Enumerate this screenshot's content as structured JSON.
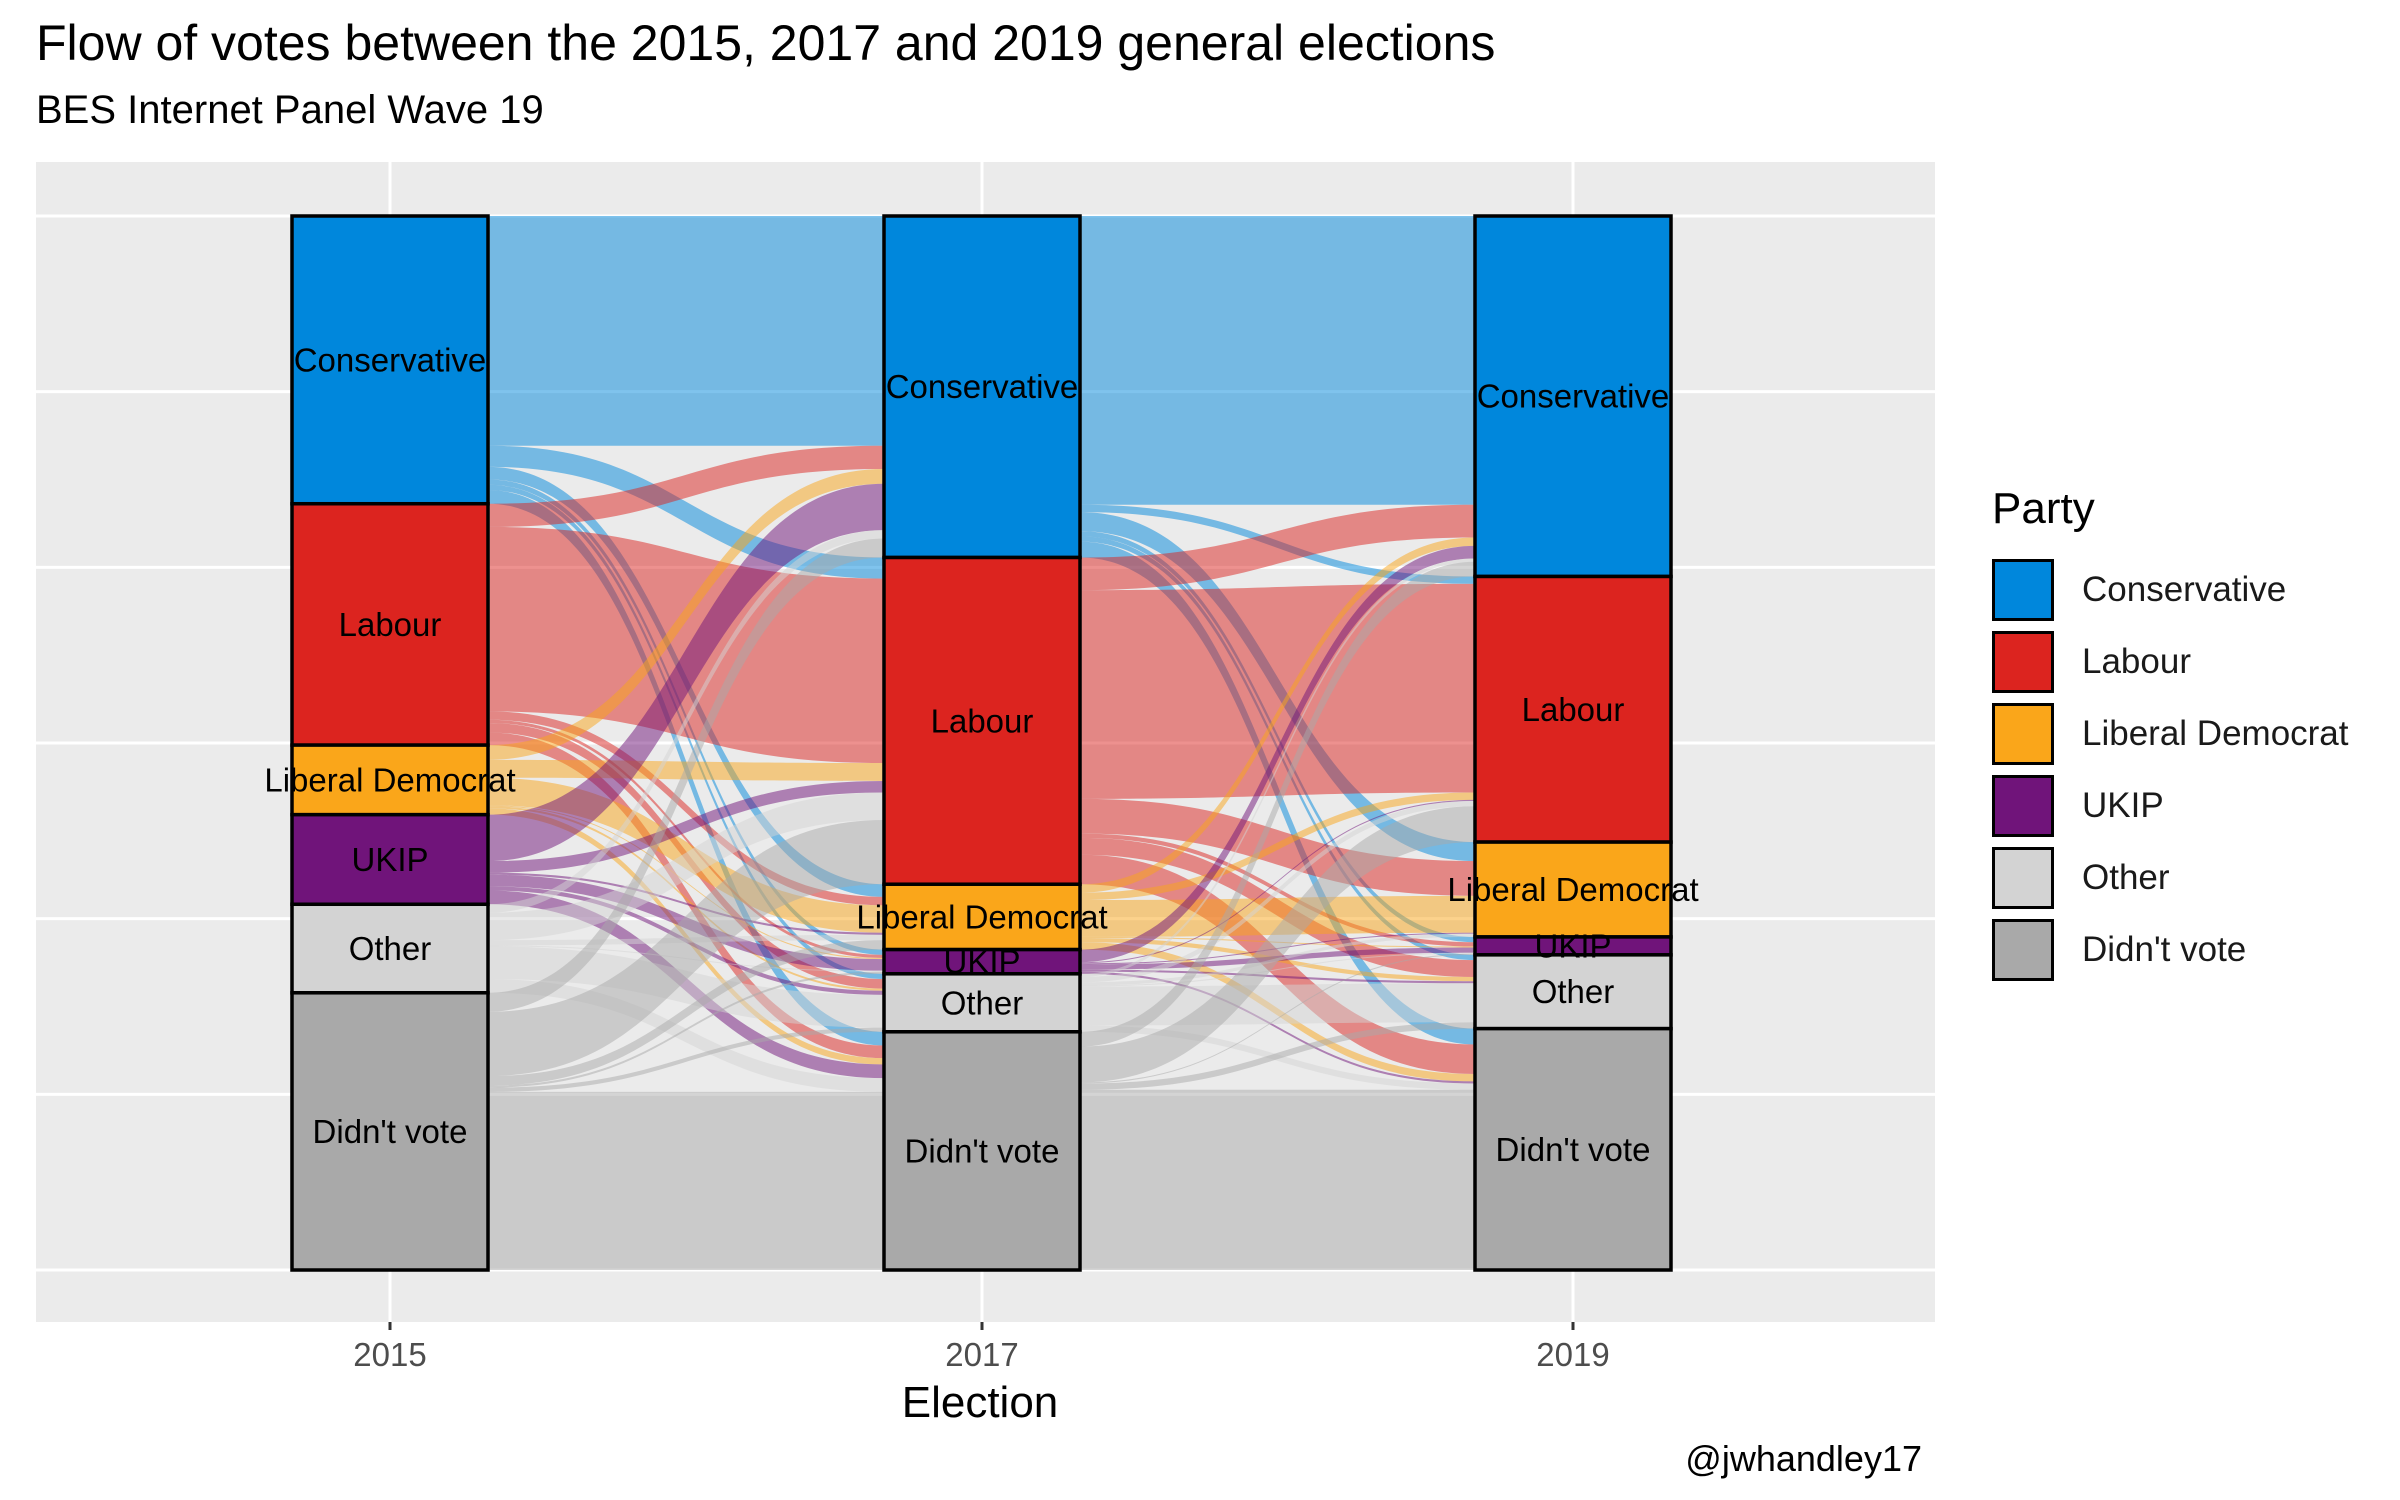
{
  "title": "Flow of votes between the 2015, 2017 and 2019 general elections",
  "subtitle": "BES Internet Panel Wave 19",
  "caption": "@jwhandley17",
  "chart_data": {
    "type": "alluvial",
    "xlabel": "Election",
    "ylabel": "",
    "elections": [
      "2015",
      "2017",
      "2019"
    ],
    "legend_title": "Party",
    "legend_position": "right",
    "grid": true,
    "categories": [
      {
        "name": "Conservative",
        "color": "#0087DC"
      },
      {
        "name": "Labour",
        "color": "#DC241F"
      },
      {
        "name": "Liberal Democrat",
        "color": "#FAA61A"
      },
      {
        "name": "UKIP",
        "color": "#70147A"
      },
      {
        "name": "Other",
        "color": "#D3D3D3"
      },
      {
        "name": "Didn't vote",
        "color": "#A9A9A9"
      }
    ],
    "stratum_shares_pct": {
      "2015": [
        27.3,
        22.9,
        6.6,
        8.5,
        8.4,
        26.3
      ],
      "2017": [
        32.4,
        31.0,
        6.2,
        2.3,
        5.5,
        22.6
      ],
      "2019": [
        34.2,
        25.2,
        9.0,
        1.7,
        7.0,
        22.9
      ]
    },
    "flows_pct": {
      "2015_to_2017": [
        {
          "from": "Conservative",
          "to": "Conservative",
          "value": 21.8
        },
        {
          "from": "Conservative",
          "to": "Labour",
          "value": 2.0
        },
        {
          "from": "Conservative",
          "to": "Liberal Democrat",
          "value": 1.2
        },
        {
          "from": "Conservative",
          "to": "UKIP",
          "value": 0.5
        },
        {
          "from": "Conservative",
          "to": "Other",
          "value": 0.5
        },
        {
          "from": "Conservative",
          "to": "Didn't vote",
          "value": 1.3
        },
        {
          "from": "Labour",
          "to": "Conservative",
          "value": 2.2
        },
        {
          "from": "Labour",
          "to": "Labour",
          "value": 17.5
        },
        {
          "from": "Labour",
          "to": "Liberal Democrat",
          "value": 0.8
        },
        {
          "from": "Labour",
          "to": "UKIP",
          "value": 0.3
        },
        {
          "from": "Labour",
          "to": "Other",
          "value": 0.9
        },
        {
          "from": "Labour",
          "to": "Didn't vote",
          "value": 1.2
        },
        {
          "from": "Liberal Democrat",
          "to": "Conservative",
          "value": 1.4
        },
        {
          "from": "Liberal Democrat",
          "to": "Labour",
          "value": 1.7
        },
        {
          "from": "Liberal Democrat",
          "to": "Liberal Democrat",
          "value": 2.6
        },
        {
          "from": "Liberal Democrat",
          "to": "UKIP",
          "value": 0.1
        },
        {
          "from": "Liberal Democrat",
          "to": "Other",
          "value": 0.2
        },
        {
          "from": "Liberal Democrat",
          "to": "Didn't vote",
          "value": 0.6
        },
        {
          "from": "UKIP",
          "to": "Conservative",
          "value": 4.4
        },
        {
          "from": "UKIP",
          "to": "Labour",
          "value": 1.1
        },
        {
          "from": "UKIP",
          "to": "Liberal Democrat",
          "value": 0.2
        },
        {
          "from": "UKIP",
          "to": "UKIP",
          "value": 1.1
        },
        {
          "from": "UKIP",
          "to": "Other",
          "value": 0.4
        },
        {
          "from": "UKIP",
          "to": "Didn't vote",
          "value": 1.3
        },
        {
          "from": "Other",
          "to": "Conservative",
          "value": 0.8
        },
        {
          "from": "Other",
          "to": "Labour",
          "value": 2.6
        },
        {
          "from": "Other",
          "to": "Liberal Democrat",
          "value": 0.5
        },
        {
          "from": "Other",
          "to": "UKIP",
          "value": 0.1
        },
        {
          "from": "Other",
          "to": "Other",
          "value": 3.1
        },
        {
          "from": "Other",
          "to": "Didn't vote",
          "value": 1.3
        },
        {
          "from": "Didn't vote",
          "to": "Conservative",
          "value": 1.8
        },
        {
          "from": "Didn't vote",
          "to": "Labour",
          "value": 6.1
        },
        {
          "from": "Didn't vote",
          "to": "Liberal Democrat",
          "value": 0.9
        },
        {
          "from": "Didn't vote",
          "to": "UKIP",
          "value": 0.2
        },
        {
          "from": "Didn't vote",
          "to": "Other",
          "value": 0.4
        },
        {
          "from": "Didn't vote",
          "to": "Didn't vote",
          "value": 16.9
        }
      ],
      "2017_to_2019": [
        {
          "from": "Conservative",
          "to": "Conservative",
          "value": 27.4
        },
        {
          "from": "Conservative",
          "to": "Labour",
          "value": 0.7
        },
        {
          "from": "Conservative",
          "to": "Liberal Democrat",
          "value": 1.8
        },
        {
          "from": "Conservative",
          "to": "UKIP",
          "value": 0.5
        },
        {
          "from": "Conservative",
          "to": "Other",
          "value": 0.5
        },
        {
          "from": "Conservative",
          "to": "Didn't vote",
          "value": 1.5
        },
        {
          "from": "Labour",
          "to": "Conservative",
          "value": 3.1
        },
        {
          "from": "Labour",
          "to": "Labour",
          "value": 19.8
        },
        {
          "from": "Labour",
          "to": "Liberal Democrat",
          "value": 3.3
        },
        {
          "from": "Labour",
          "to": "UKIP",
          "value": 0.4
        },
        {
          "from": "Labour",
          "to": "Other",
          "value": 1.6
        },
        {
          "from": "Labour",
          "to": "Didn't vote",
          "value": 2.8
        },
        {
          "from": "Liberal Democrat",
          "to": "Conservative",
          "value": 0.8
        },
        {
          "from": "Liberal Democrat",
          "to": "Labour",
          "value": 0.7
        },
        {
          "from": "Liberal Democrat",
          "to": "Liberal Democrat",
          "value": 3.5
        },
        {
          "from": "Liberal Democrat",
          "to": "UKIP",
          "value": 0.1
        },
        {
          "from": "Liberal Democrat",
          "to": "Other",
          "value": 0.4
        },
        {
          "from": "Liberal Democrat",
          "to": "Didn't vote",
          "value": 0.7
        },
        {
          "from": "UKIP",
          "to": "Conservative",
          "value": 1.2
        },
        {
          "from": "UKIP",
          "to": "Labour",
          "value": 0.1
        },
        {
          "from": "UKIP",
          "to": "Liberal Democrat",
          "value": 0.1
        },
        {
          "from": "UKIP",
          "to": "UKIP",
          "value": 0.5
        },
        {
          "from": "UKIP",
          "to": "Other",
          "value": 0.2
        },
        {
          "from": "UKIP",
          "to": "Didn't vote",
          "value": 0.2
        },
        {
          "from": "Other",
          "to": "Conservative",
          "value": 0.3
        },
        {
          "from": "Other",
          "to": "Labour",
          "value": 0.5
        },
        {
          "from": "Other",
          "to": "Liberal Democrat",
          "value": 0.3
        },
        {
          "from": "Other",
          "to": "UKIP",
          "value": 0.1
        },
        {
          "from": "Other",
          "to": "Other",
          "value": 3.7
        },
        {
          "from": "Other",
          "to": "Didn't vote",
          "value": 0.6
        },
        {
          "from": "Didn't vote",
          "to": "Conservative",
          "value": 1.4
        },
        {
          "from": "Didn't vote",
          "to": "Labour",
          "value": 3.4
        },
        {
          "from": "Didn't vote",
          "to": "Liberal Democrat",
          "value": 0.0
        },
        {
          "from": "Didn't vote",
          "to": "UKIP",
          "value": 0.1
        },
        {
          "from": "Didn't vote",
          "to": "Other",
          "value": 0.6
        },
        {
          "from": "Didn't vote",
          "to": "Didn't vote",
          "value": 17.1
        }
      ]
    }
  }
}
